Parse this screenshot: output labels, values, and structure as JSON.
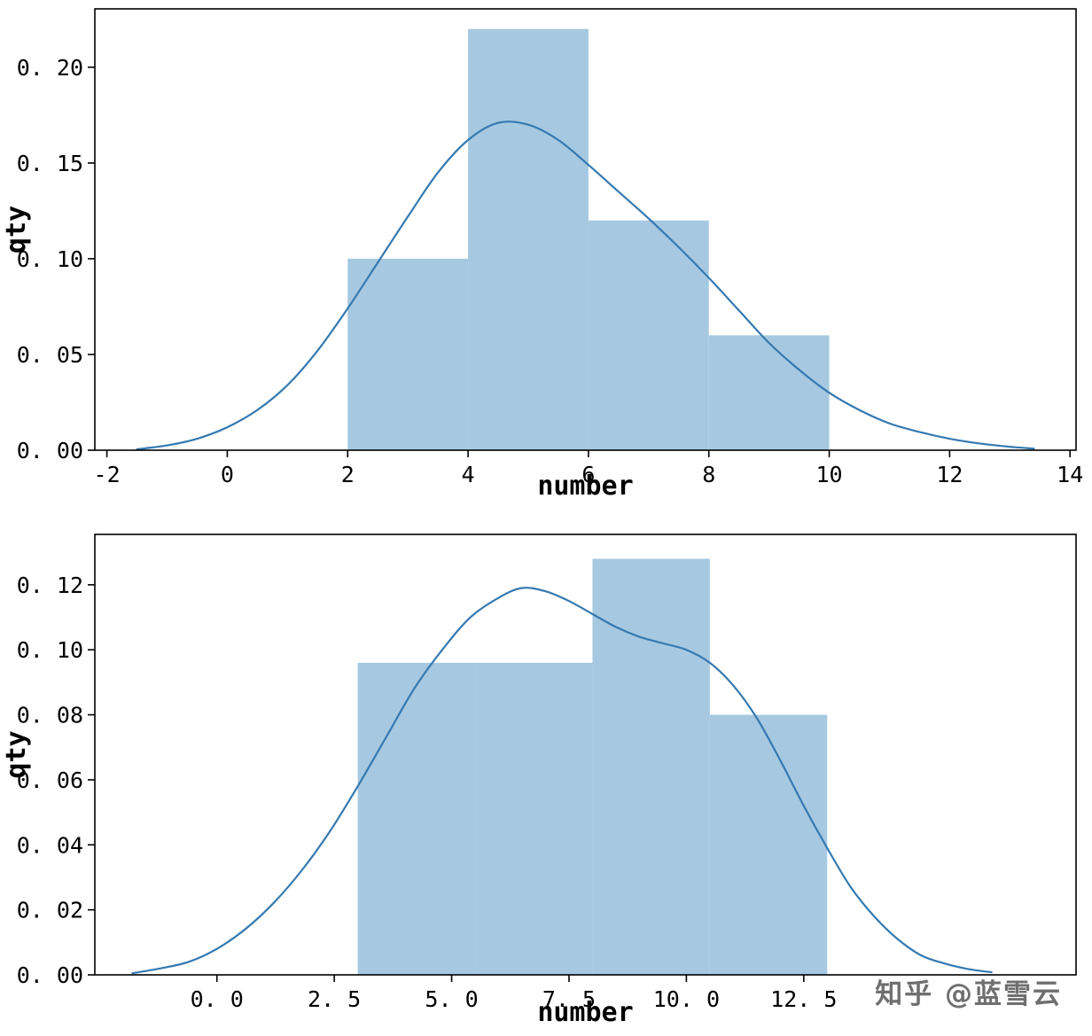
{
  "page": {
    "background": "#ffffff"
  },
  "watermark": {
    "text": "知乎 @蓝雪云",
    "color": "#6f6f6f"
  },
  "chart_data": [
    {
      "type": "histogram+kde",
      "title": "",
      "xlabel": "number",
      "ylabel": "qty",
      "xlim": [
        -2.2,
        14.1
      ],
      "ylim": [
        0,
        0.2305
      ],
      "grid": false,
      "legend": "none",
      "colors": {
        "bar": "#a6c9e1",
        "line": "#3579b1",
        "frame": "#000000"
      },
      "xticks": {
        "values": [
          -2,
          0,
          2,
          4,
          6,
          8,
          10,
          12,
          14
        ],
        "labels": [
          "-2",
          "0",
          "2",
          "4",
          "6",
          "8",
          "10",
          "12",
          "14"
        ]
      },
      "yticks": {
        "values": [
          0,
          0.05,
          0.1,
          0.15,
          0.2
        ],
        "labels": [
          "0. 00",
          "0. 05",
          "0. 10",
          "0. 15",
          "0. 20"
        ]
      },
      "bars": [
        {
          "x0": 2,
          "x1": 4,
          "height": 0.1
        },
        {
          "x0": 4,
          "x1": 6,
          "height": 0.22
        },
        {
          "x0": 6,
          "x1": 8,
          "height": 0.12
        },
        {
          "x0": 8,
          "x1": 10,
          "height": 0.06
        }
      ],
      "kde_points": [
        [
          -1.5,
          0.0005
        ],
        [
          -1.0,
          0.0025
        ],
        [
          -0.5,
          0.006
        ],
        [
          0,
          0.012
        ],
        [
          0.5,
          0.021
        ],
        [
          1,
          0.034
        ],
        [
          1.5,
          0.052
        ],
        [
          2,
          0.074
        ],
        [
          2.5,
          0.098
        ],
        [
          3,
          0.122
        ],
        [
          3.5,
          0.145
        ],
        [
          4,
          0.162
        ],
        [
          4.5,
          0.171
        ],
        [
          5,
          0.17
        ],
        [
          5.5,
          0.162
        ],
        [
          6,
          0.149
        ],
        [
          6.5,
          0.135
        ],
        [
          7,
          0.121
        ],
        [
          7.5,
          0.106
        ],
        [
          8,
          0.09
        ],
        [
          8.5,
          0.073
        ],
        [
          9,
          0.056
        ],
        [
          9.5,
          0.042
        ],
        [
          10,
          0.03
        ],
        [
          10.5,
          0.021
        ],
        [
          11,
          0.014
        ],
        [
          11.5,
          0.0095
        ],
        [
          12,
          0.006
        ],
        [
          12.5,
          0.0035
        ],
        [
          13,
          0.0018
        ],
        [
          13.4,
          0.0008
        ]
      ]
    },
    {
      "type": "histogram+kde",
      "title": "",
      "xlabel": "number",
      "ylabel": "qty",
      "xlim": [
        -2.6,
        18.3
      ],
      "ylim": [
        0,
        0.1355
      ],
      "grid": false,
      "legend": "none",
      "colors": {
        "bar": "#a6c9e1",
        "line": "#3579b1",
        "frame": "#000000"
      },
      "xticks": {
        "values": [
          0,
          2.5,
          5,
          7.5,
          10,
          12.5
        ],
        "labels": [
          "0. 0",
          "2. 5",
          "5. 0",
          "7. 5",
          "10. 0",
          "12. 5"
        ]
      },
      "yticks": {
        "values": [
          0,
          0.02,
          0.04,
          0.06,
          0.08,
          0.1,
          0.12
        ],
        "labels": [
          "0. 00",
          "0. 02",
          "0. 04",
          "0. 06",
          "0. 08",
          "0. 10",
          "0. 12"
        ]
      },
      "bars": [
        {
          "x0": 3,
          "x1": 5.5,
          "height": 0.096
        },
        {
          "x0": 5.5,
          "x1": 8,
          "height": 0.096
        },
        {
          "x0": 8,
          "x1": 10.5,
          "height": 0.128
        },
        {
          "x0": 10.5,
          "x1": 13,
          "height": 0.08
        }
      ],
      "kde_points": [
        [
          -1.8,
          0.0005
        ],
        [
          -1.2,
          0.002
        ],
        [
          -0.6,
          0.004
        ],
        [
          0,
          0.008
        ],
        [
          0.6,
          0.014
        ],
        [
          1.2,
          0.022
        ],
        [
          1.8,
          0.032
        ],
        [
          2.4,
          0.044
        ],
        [
          3,
          0.058
        ],
        [
          3.6,
          0.073
        ],
        [
          4.2,
          0.088
        ],
        [
          4.8,
          0.1
        ],
        [
          5.4,
          0.11
        ],
        [
          6,
          0.116
        ],
        [
          6.5,
          0.119
        ],
        [
          7,
          0.118
        ],
        [
          7.5,
          0.115
        ],
        [
          8,
          0.111
        ],
        [
          8.5,
          0.107
        ],
        [
          9,
          0.104
        ],
        [
          9.5,
          0.102
        ],
        [
          10,
          0.1
        ],
        [
          10.5,
          0.096
        ],
        [
          11,
          0.089
        ],
        [
          11.5,
          0.079
        ],
        [
          12,
          0.066
        ],
        [
          12.5,
          0.052
        ],
        [
          13,
          0.039
        ],
        [
          13.5,
          0.027
        ],
        [
          14,
          0.018
        ],
        [
          14.5,
          0.011
        ],
        [
          15,
          0.006
        ],
        [
          15.5,
          0.0035
        ],
        [
          16,
          0.0018
        ],
        [
          16.5,
          0.0008
        ]
      ]
    }
  ]
}
